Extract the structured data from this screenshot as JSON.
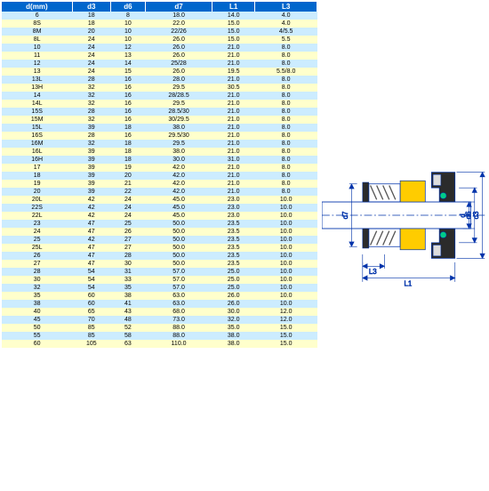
{
  "table": {
    "header_bg": "#0066cc",
    "row_colors": [
      "#ccecff",
      "#ffffcc"
    ],
    "columns": [
      "d(mm)",
      "d3",
      "d6",
      "d7",
      "L1",
      "L3"
    ],
    "rows": [
      [
        "6",
        "18",
        "8",
        "18.0",
        "14.0",
        "4.0"
      ],
      [
        "8S",
        "18",
        "10",
        "22.0",
        "15.0",
        "4.0"
      ],
      [
        "8M",
        "20",
        "10",
        "22/26",
        "15.0",
        "4/5.5"
      ],
      [
        "8L",
        "24",
        "10",
        "26.0",
        "15.0",
        "5.5"
      ],
      [
        "10",
        "24",
        "12",
        "26.0",
        "21.0",
        "8.0"
      ],
      [
        "11",
        "24",
        "13",
        "26.0",
        "21.0",
        "8.0"
      ],
      [
        "12",
        "24",
        "14",
        "25/28",
        "21.0",
        "8.0"
      ],
      [
        "13",
        "24",
        "15",
        "26.0",
        "19.5",
        "5.5/8.0"
      ],
      [
        "13L",
        "28",
        "16",
        "28.0",
        "21.0",
        "8.0"
      ],
      [
        "13H",
        "32",
        "16",
        "29.5",
        "30.5",
        "8.0"
      ],
      [
        "14",
        "32",
        "16",
        "28/28.5",
        "21.0",
        "8.0"
      ],
      [
        "14L",
        "32",
        "16",
        "29.5",
        "21.0",
        "8.0"
      ],
      [
        "15S",
        "28",
        "16",
        "28.5/30",
        "21.0",
        "8.0"
      ],
      [
        "15M",
        "32",
        "16",
        "30/29.5",
        "21.0",
        "8.0"
      ],
      [
        "15L",
        "39",
        "18",
        "38.0",
        "21.0",
        "8.0"
      ],
      [
        "16S",
        "28",
        "16",
        "29.5/30",
        "21.0",
        "8.0"
      ],
      [
        "16M",
        "32",
        "18",
        "29.5",
        "21.0",
        "8.0"
      ],
      [
        "16L",
        "39",
        "18",
        "38.0",
        "21.0",
        "8.0"
      ],
      [
        "16H",
        "39",
        "18",
        "30.0",
        "31.0",
        "8.0"
      ],
      [
        "17",
        "39",
        "19",
        "42.0",
        "21.0",
        "8.0"
      ],
      [
        "18",
        "39",
        "20",
        "42.0",
        "21.0",
        "8.0"
      ],
      [
        "19",
        "39",
        "21",
        "42.0",
        "21.0",
        "8.0"
      ],
      [
        "20",
        "39",
        "22",
        "42.0",
        "21.0",
        "8.0"
      ],
      [
        "20L",
        "42",
        "24",
        "45.0",
        "23.0",
        "10.0"
      ],
      [
        "22S",
        "42",
        "24",
        "45.0",
        "23.0",
        "10.0"
      ],
      [
        "22L",
        "42",
        "24",
        "45.0",
        "23.0",
        "10.0"
      ],
      [
        "23",
        "47",
        "25",
        "50.0",
        "23.5",
        "10.0"
      ],
      [
        "24",
        "47",
        "26",
        "50.0",
        "23.5",
        "10.0"
      ],
      [
        "25",
        "42",
        "27",
        "50.0",
        "23.5",
        "10.0"
      ],
      [
        "25L",
        "47",
        "27",
        "50.0",
        "23.5",
        "10.0"
      ],
      [
        "26",
        "47",
        "28",
        "50.0",
        "23.5",
        "10.0"
      ],
      [
        "27",
        "47",
        "30",
        "50.0",
        "23.5",
        "10.0"
      ],
      [
        "28",
        "54",
        "31",
        "57.0",
        "25.0",
        "10.0"
      ],
      [
        "30",
        "54",
        "33",
        "57.0",
        "25.0",
        "10.0"
      ],
      [
        "32",
        "54",
        "35",
        "57.0",
        "25.0",
        "10.0"
      ],
      [
        "35",
        "60",
        "38",
        "63.0",
        "26.0",
        "10.0"
      ],
      [
        "38",
        "60",
        "41",
        "63.0",
        "26.0",
        "10.0"
      ],
      [
        "40",
        "65",
        "43",
        "68.0",
        "30.0",
        "12.0"
      ],
      [
        "45",
        "70",
        "48",
        "73.0",
        "32.0",
        "12.0"
      ],
      [
        "50",
        "85",
        "52",
        "88.0",
        "35.0",
        "15.0"
      ],
      [
        "55",
        "85",
        "58",
        "88.0",
        "38.0",
        "15.0"
      ],
      [
        "60",
        "105",
        "63",
        "110.0",
        "38.0",
        "15.0"
      ]
    ]
  },
  "diagram": {
    "labels": {
      "d": "d",
      "d6": "d6",
      "d3": "d3",
      "d7": "d7",
      "L3": "L3",
      "L1": "L1"
    },
    "colors": {
      "outline": "#0033aa",
      "shaft": "#ffffff",
      "seal_body": "#2b2b2b",
      "insert": "#dddddd",
      "spring": "#555555",
      "rotary": "#ffcc00",
      "oring": "#00cc88",
      "centerline": "#0033aa",
      "dim": "#0033aa"
    }
  }
}
